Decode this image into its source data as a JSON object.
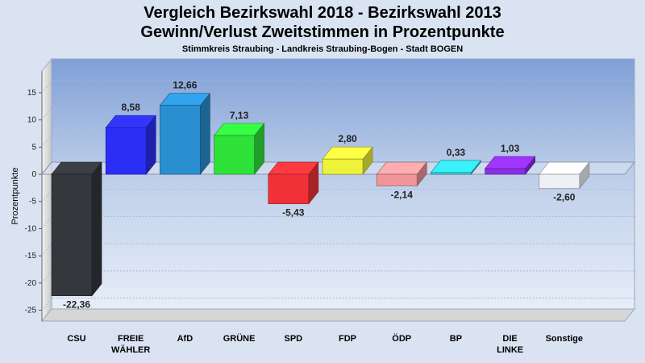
{
  "chart_data": {
    "type": "bar",
    "title": "Vergleich Bezirkswahl 2018 - Bezirkswahl 2013",
    "subtitle": "Gewinn/Verlust Zweitstimmen in Prozentpunkte",
    "subtitle2": "Stimmkreis Straubing - Landkreis Straubing-Bogen - Stadt BOGEN",
    "ylabel": "Prozentpunkte",
    "ylim": [
      -27,
      19
    ],
    "yticks": [
      15,
      10,
      5,
      0,
      -5,
      -10,
      -15,
      -20,
      -25
    ],
    "categories": [
      "CSU",
      "FREIE WÄHLER",
      "AfD",
      "GRÜNE",
      "SPD",
      "FDP",
      "ÖDP",
      "BP",
      "DIE LINKE",
      "Sonstige"
    ],
    "category_lines": [
      [
        "CSU"
      ],
      [
        "FREIE",
        "WÄHLER"
      ],
      [
        "AfD"
      ],
      [
        "GRÜNE"
      ],
      [
        "SPD"
      ],
      [
        "FDP"
      ],
      [
        "ÖDP"
      ],
      [
        "BP"
      ],
      [
        "DIE",
        "LINKE"
      ],
      [
        "Sonstige"
      ]
    ],
    "values": [
      -22.36,
      8.58,
      12.66,
      7.13,
      -5.43,
      2.8,
      -2.14,
      0.33,
      1.03,
      -2.6
    ],
    "value_labels": [
      "-22,36",
      "8,58",
      "12,66",
      "7,13",
      "-5,43",
      "2,80",
      "-2,14",
      "0,33",
      "1,03",
      "-2,60"
    ],
    "colors": [
      "#34373c",
      "#2b2ff5",
      "#2a8fd0",
      "#2ee23a",
      "#f03238",
      "#eef23a",
      "#f0969a",
      "#32d2d8",
      "#8a2ee8",
      "#eef0f6"
    ],
    "grid": true,
    "legend": "none"
  }
}
